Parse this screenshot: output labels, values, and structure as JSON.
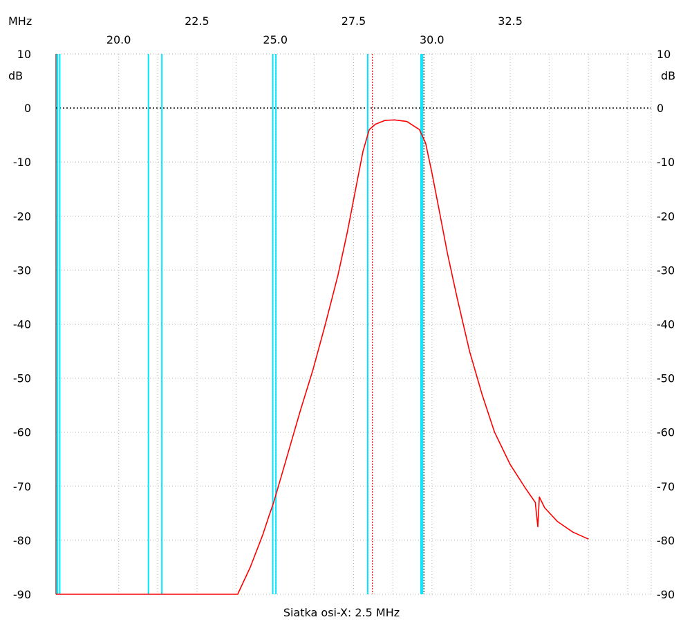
{
  "chart_data": {
    "type": "line",
    "x_unit": "MHz",
    "y_unit": "dB",
    "xlim": [
      18.0,
      37.0
    ],
    "ylim": [
      -90,
      10
    ],
    "x_ticks_upper": [
      "22.5",
      "27.5",
      "32.5"
    ],
    "x_ticks_lower": [
      "20.0",
      "25.0",
      "30.0"
    ],
    "y_ticks": [
      "10",
      "0",
      "-10",
      "-20",
      "-30",
      "-40",
      "-50",
      "-60",
      "-70",
      "-80",
      "-90"
    ],
    "x_grid_caption": "Siatka osi-X: 2.5 MHz",
    "grid": true,
    "colors": {
      "trace": "#ff0000",
      "marker_lines": "#00e5ff",
      "grid": "#b4b4b4",
      "frame": "#000000"
    },
    "marker_lines_x": [
      18.05,
      18.12,
      20.95,
      21.38,
      24.92,
      25.02,
      27.95,
      29.65,
      29.7
    ],
    "red_dotted_x": 28.1,
    "black_dotted_x": 29.7,
    "series": [
      {
        "points": [
          [
            18.0,
            -90
          ],
          [
            23.8,
            -90
          ],
          [
            24.2,
            -85
          ],
          [
            24.6,
            -79
          ],
          [
            24.8,
            -75.5
          ],
          [
            24.95,
            -73
          ],
          [
            25.2,
            -68
          ],
          [
            25.5,
            -62
          ],
          [
            25.8,
            -56
          ],
          [
            26.2,
            -48.5
          ],
          [
            26.6,
            -40
          ],
          [
            27.0,
            -31
          ],
          [
            27.3,
            -23
          ],
          [
            27.6,
            -14
          ],
          [
            27.8,
            -8
          ],
          [
            28.0,
            -4
          ],
          [
            28.2,
            -3
          ],
          [
            28.5,
            -2.3
          ],
          [
            28.8,
            -2.2
          ],
          [
            29.2,
            -2.5
          ],
          [
            29.6,
            -4
          ],
          [
            29.8,
            -6.5
          ],
          [
            30.0,
            -12
          ],
          [
            30.2,
            -18
          ],
          [
            30.5,
            -27
          ],
          [
            30.8,
            -35
          ],
          [
            31.2,
            -45
          ],
          [
            31.6,
            -53
          ],
          [
            32.0,
            -60
          ],
          [
            32.5,
            -66
          ],
          [
            33.0,
            -70.5
          ],
          [
            33.3,
            -73
          ],
          [
            33.38,
            -77.5
          ],
          [
            33.43,
            -72
          ],
          [
            33.6,
            -74
          ],
          [
            34.0,
            -76.5
          ],
          [
            34.5,
            -78.5
          ],
          [
            35.0,
            -79.8
          ]
        ]
      }
    ]
  }
}
